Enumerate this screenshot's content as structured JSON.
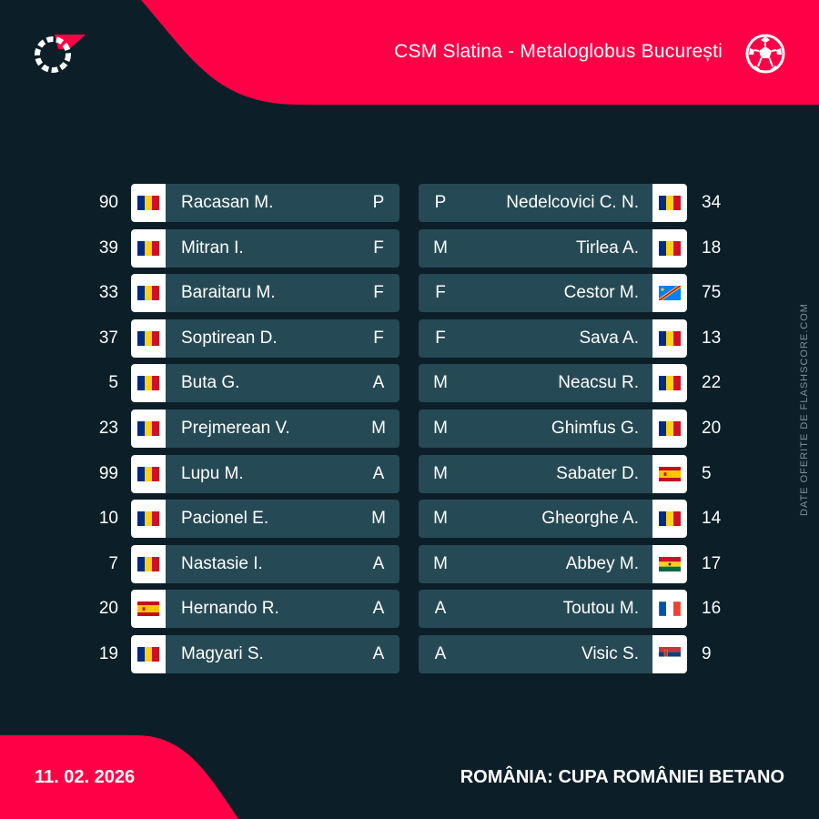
{
  "header": {
    "title": "CSM Slatina - Metaloglobus București",
    "logo_icon": "flashscore-logo-icon",
    "sport_icon": "football-icon"
  },
  "colors": {
    "accent": "#ff0046",
    "background": "#0c1f28",
    "card": "#264a55",
    "muted": "#7f929b"
  },
  "side_credit": "DATE OFERITE DE FLASHSCORE.COM",
  "footer": {
    "date": "11. 02. 2026",
    "competition": "ROMÂNIA: CUPA ROMÂNIEI BETANO"
  },
  "home": {
    "players": [
      {
        "number": "90",
        "name": "Racasan M.",
        "position": "P",
        "flag": "romania"
      },
      {
        "number": "39",
        "name": "Mitran I.",
        "position": "F",
        "flag": "romania"
      },
      {
        "number": "33",
        "name": "Baraitaru M.",
        "position": "F",
        "flag": "romania"
      },
      {
        "number": "37",
        "name": "Soptirean D.",
        "position": "F",
        "flag": "romania"
      },
      {
        "number": "5",
        "name": "Buta G.",
        "position": "A",
        "flag": "romania"
      },
      {
        "number": "23",
        "name": "Prejmerean V.",
        "position": "M",
        "flag": "romania"
      },
      {
        "number": "99",
        "name": "Lupu M.",
        "position": "A",
        "flag": "romania"
      },
      {
        "number": "10",
        "name": "Pacionel E.",
        "position": "M",
        "flag": "romania"
      },
      {
        "number": "7",
        "name": "Nastasie I.",
        "position": "A",
        "flag": "romania"
      },
      {
        "number": "20",
        "name": "Hernando R.",
        "position": "A",
        "flag": "spain"
      },
      {
        "number": "19",
        "name": "Magyari S.",
        "position": "A",
        "flag": "romania"
      }
    ]
  },
  "away": {
    "players": [
      {
        "number": "34",
        "name": "Nedelcovici C. N.",
        "position": "P",
        "flag": "romania"
      },
      {
        "number": "18",
        "name": "Tirlea A.",
        "position": "M",
        "flag": "romania"
      },
      {
        "number": "75",
        "name": "Cestor M.",
        "position": "F",
        "flag": "dr-congo"
      },
      {
        "number": "13",
        "name": "Sava A.",
        "position": "F",
        "flag": "romania"
      },
      {
        "number": "22",
        "name": "Neacsu R.",
        "position": "M",
        "flag": "romania"
      },
      {
        "number": "20",
        "name": "Ghimfus G.",
        "position": "M",
        "flag": "romania"
      },
      {
        "number": "5",
        "name": "Sabater D.",
        "position": "M",
        "flag": "spain"
      },
      {
        "number": "14",
        "name": "Gheorghe A.",
        "position": "M",
        "flag": "romania"
      },
      {
        "number": "17",
        "name": "Abbey M.",
        "position": "M",
        "flag": "ghana"
      },
      {
        "number": "16",
        "name": "Toutou M.",
        "position": "A",
        "flag": "france"
      },
      {
        "number": "9",
        "name": "Visic S.",
        "position": "A",
        "flag": "serbia"
      }
    ]
  }
}
